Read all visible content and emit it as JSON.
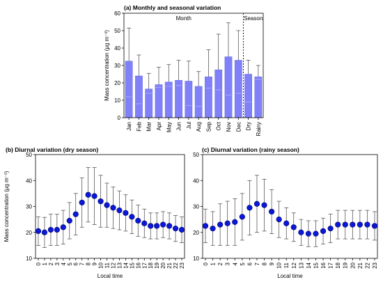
{
  "colors": {
    "bar": "#8080f8",
    "bar_stroke": "#6a6ae8",
    "marker": "#0a18d8",
    "marker_stroke": "#000066",
    "error": "#444444"
  },
  "chart_data": [
    {
      "type": "bar",
      "panel": "a",
      "title": "(a) Monthly and seasonal variation",
      "ylabel": "Mass concentration (μg m⁻³)",
      "ylim": [
        0,
        60
      ],
      "yticks": [
        "0",
        "10",
        "20",
        "30",
        "40",
        "50",
        "60"
      ],
      "section_labels": [
        "Month",
        "Season"
      ],
      "categories": [
        "Jan",
        "Feb",
        "Mar",
        "Apr",
        "May",
        "Jun",
        "Jul",
        "Aug",
        "Sep",
        "Oct",
        "Nov",
        "Dec",
        "Dry",
        "Rainy"
      ],
      "values": [
        32.5,
        24,
        16.5,
        19,
        20.5,
        21.5,
        21,
        18,
        23.5,
        27.5,
        35,
        33,
        25,
        23.5
      ],
      "error_upper": [
        51.5,
        36,
        25.5,
        29,
        30.5,
        33,
        32.5,
        26.5,
        39,
        48,
        54.5,
        50,
        33,
        30
      ],
      "inner_marks": [
        12,
        8,
        14,
        17.5,
        18,
        18.5,
        7,
        6.5,
        17,
        16,
        13,
        14,
        9,
        22
      ]
    },
    {
      "type": "scatter",
      "panel": "b",
      "title": "(b) Diurnal variation (dry season)",
      "xlabel": "Local time",
      "ylabel": "Mass concentration (μg m⁻³)",
      "ylim": [
        10,
        50
      ],
      "yticks": [
        "10",
        "20",
        "30",
        "40",
        "50"
      ],
      "x": [
        "0",
        "1",
        "2",
        "3",
        "4",
        "5",
        "6",
        "7",
        "8",
        "9",
        "10",
        "11",
        "12",
        "13",
        "14",
        "15",
        "16",
        "17",
        "18",
        "19",
        "20",
        "21",
        "22",
        "23"
      ],
      "values": [
        20.5,
        20,
        21,
        21,
        22,
        24.5,
        27,
        31.5,
        34.5,
        34,
        32,
        30.5,
        29.5,
        28.5,
        27.5,
        26,
        24.5,
        23.5,
        22.5,
        22.5,
        23,
        22.5,
        21.5,
        21
      ],
      "error": [
        5.5,
        5.8,
        6,
        6,
        6.5,
        7,
        8,
        9.5,
        10.5,
        11,
        10,
        8.5,
        8,
        7.5,
        7,
        6.5,
        6,
        5.5,
        5,
        5,
        5,
        5,
        5,
        5
      ]
    },
    {
      "type": "scatter",
      "panel": "c",
      "title": "(c) Diurnal variation (rainy season)",
      "xlabel": "Local time",
      "ylim": [
        10,
        50
      ],
      "yticks": [
        "10",
        "20",
        "30",
        "40",
        "50"
      ],
      "x": [
        "0",
        "1",
        "2",
        "3",
        "4",
        "5",
        "6",
        "7",
        "8",
        "9",
        "10",
        "11",
        "12",
        "13",
        "14",
        "15",
        "16",
        "17",
        "18",
        "19",
        "20",
        "21",
        "22",
        "23"
      ],
      "values": [
        22.5,
        21.5,
        23,
        23.5,
        24,
        26,
        29.5,
        31,
        30.5,
        28,
        25,
        23.5,
        22,
        20,
        19.5,
        19.5,
        20.5,
        21.5,
        23,
        23,
        23,
        23,
        23,
        22.5
      ],
      "error": [
        6.5,
        6.5,
        8,
        8.5,
        9,
        9,
        10.5,
        11,
        10,
        8.5,
        7,
        6,
        5.5,
        5,
        5,
        5,
        5,
        5.5,
        5.5,
        5.5,
        5.5,
        5.5,
        5.5,
        5.5
      ]
    }
  ]
}
